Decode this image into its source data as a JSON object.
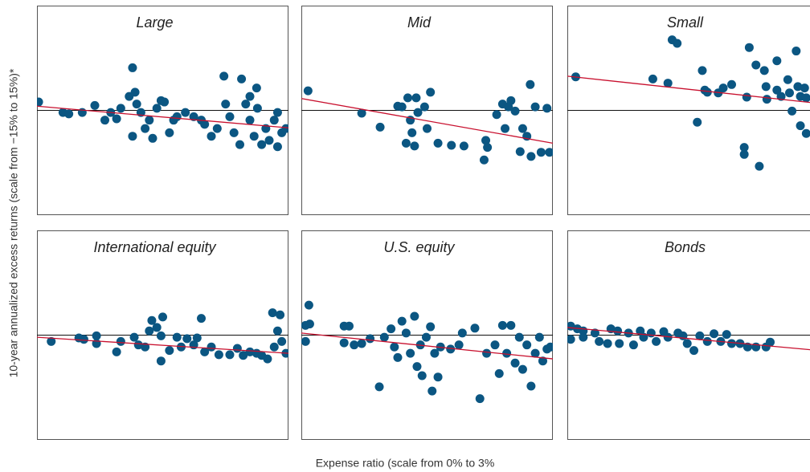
{
  "y_label": "10-year annualized excess returns (scale from −15% to 15%)*",
  "x_label": "Expense ratio (scale from 0% to 3%",
  "chart_data": [
    {
      "type": "scatter",
      "title": "Large",
      "color": "#0b5682",
      "trend_color": "#c8102e",
      "xlim": [
        0,
        3
      ],
      "ylim": [
        -15,
        15
      ],
      "hline": 0,
      "x": [
        0.02,
        0.31,
        0.38,
        0.54,
        0.69,
        0.81,
        0.88,
        0.95,
        1.0,
        1.1,
        1.14,
        1.17,
        1.19,
        1.24,
        1.14,
        1.29,
        1.34,
        1.38,
        1.43,
        1.48,
        1.52,
        1.58,
        1.63,
        1.67,
        1.77,
        1.87,
        1.96,
        2.0,
        2.08,
        2.15,
        2.23,
        2.25,
        2.3,
        2.35,
        2.44,
        2.42,
        2.49,
        2.54,
        2.59,
        2.62,
        2.63,
        2.68,
        2.73,
        2.77,
        2.83,
        2.87,
        2.92,
        2.97,
        2.87,
        2.54
      ],
      "values": [
        1.2,
        -0.3,
        -0.5,
        -0.3,
        0.7,
        -1.4,
        -0.3,
        -1.2,
        0.3,
        2.0,
        6.1,
        2.6,
        0.9,
        -0.3,
        -3.7,
        -2.6,
        -1.4,
        -4.0,
        0.3,
        1.4,
        1.2,
        -3.2,
        -1.4,
        -0.9,
        -0.3,
        -0.9,
        -1.4,
        -2.0,
        -3.7,
        -2.6,
        4.9,
        0.9,
        -0.9,
        -3.2,
        4.5,
        -4.9,
        0.9,
        -1.4,
        -3.7,
        3.2,
        0.3,
        -4.9,
        -2.6,
        -4.3,
        -1.4,
        -5.2,
        -3.2,
        -2.6,
        -0.3,
        2.0
      ],
      "trend_line": {
        "x": [
          0,
          3
        ],
        "y": [
          0.6,
          -2.5
        ]
      }
    },
    {
      "type": "scatter",
      "title": "Mid",
      "color": "#0b5682",
      "trend_color": "#c8102e",
      "xlim": [
        0,
        3
      ],
      "ylim": [
        -15,
        15
      ],
      "hline": 0,
      "x": [
        0.08,
        0.72,
        0.94,
        1.15,
        1.2,
        1.27,
        1.3,
        1.32,
        1.35,
        1.37,
        1.39,
        1.25,
        1.47,
        1.5,
        1.54,
        1.63,
        1.79,
        1.94,
        2.18,
        2.2,
        2.22,
        2.33,
        2.4,
        2.43,
        2.47,
        2.5,
        2.55,
        2.61,
        2.64,
        2.69,
        2.73,
        2.74,
        2.79,
        2.86,
        2.93,
        2.96
      ],
      "values": [
        2.8,
        -0.4,
        -2.4,
        0.6,
        0.5,
        1.8,
        -1.4,
        -3.2,
        -5.1,
        1.8,
        -0.3,
        -4.7,
        0.5,
        -2.6,
        2.6,
        -4.7,
        -5.0,
        -5.1,
        -7.1,
        -4.3,
        -5.3,
        -0.6,
        0.9,
        -2.6,
        0.5,
        1.4,
        -0.1,
        -5.9,
        -2.6,
        -3.7,
        3.7,
        -6.6,
        0.5,
        -6.0,
        0.3,
        -6.0
      ],
      "trend_line": {
        "x": [
          0,
          3
        ],
        "y": [
          1.7,
          -4.7
        ]
      }
    },
    {
      "type": "scatter",
      "title": "Small",
      "color": "#0b5682",
      "trend_color": "#c8102e",
      "xlim": [
        0,
        3
      ],
      "ylim": [
        -15,
        15
      ],
      "hline": 0,
      "x": [
        0.1,
        1.02,
        1.2,
        1.25,
        1.31,
        1.61,
        1.64,
        1.67,
        1.55,
        1.8,
        1.86,
        1.96,
        2.11,
        2.11,
        2.17,
        2.14,
        2.25,
        2.29,
        2.35,
        2.37,
        2.38,
        2.5,
        2.5,
        2.55,
        2.63,
        2.65,
        2.73,
        2.75,
        2.78,
        2.83,
        2.78,
        2.85,
        2.68,
        2.85
      ],
      "values": [
        4.8,
        4.5,
        3.9,
        10.1,
        9.6,
        5.7,
        2.9,
        2.6,
        -1.7,
        2.5,
        3.2,
        3.7,
        -5.3,
        -6.3,
        9.0,
        1.9,
        6.5,
        -8.0,
        5.7,
        3.4,
        1.6,
        7.1,
        2.9,
        2.0,
        4.4,
        2.5,
        8.5,
        3.4,
        2.0,
        3.2,
        -2.2,
        -3.3,
        -0.1,
        1.8
      ],
      "trend_line": {
        "x": [
          0,
          3
        ],
        "y": [
          4.9,
          1.0
        ]
      }
    },
    {
      "type": "scatter",
      "title": "International equity",
      "color": "#0b5682",
      "trend_color": "#c8102e",
      "xlim": [
        0,
        3
      ],
      "ylim": [
        -15,
        15
      ],
      "hline": 0,
      "x": [
        0.17,
        0.5,
        0.56,
        0.71,
        0.71,
        0.95,
        1.0,
        1.16,
        1.21,
        1.29,
        1.34,
        1.37,
        1.43,
        1.48,
        1.48,
        1.5,
        1.58,
        1.67,
        1.72,
        1.79,
        1.87,
        1.91,
        1.96,
        2.0,
        2.08,
        2.17,
        2.3,
        2.39,
        2.46,
        2.54,
        2.62,
        2.68,
        2.75,
        2.81,
        2.87,
        2.9,
        2.92,
        2.97,
        2.83
      ],
      "values": [
        -0.9,
        -0.4,
        -0.6,
        -0.1,
        -1.2,
        -2.4,
        -0.9,
        -0.3,
        -1.4,
        -1.7,
        0.6,
        2.1,
        1.1,
        -0.1,
        -3.7,
        2.6,
        -2.2,
        -0.3,
        -1.7,
        -0.5,
        -1.4,
        -0.4,
        2.4,
        -2.4,
        -1.7,
        -2.8,
        -2.8,
        -1.9,
        -2.9,
        -2.4,
        -2.6,
        -2.9,
        -3.4,
        3.2,
        0.6,
        2.9,
        -0.9,
        -2.6,
        -1.7
      ],
      "trend_line": {
        "x": [
          0,
          3
        ],
        "y": [
          -0.3,
          -2.6
        ]
      }
    },
    {
      "type": "scatter",
      "title": "U.S. equity",
      "color": "#0b5682",
      "trend_color": "#c8102e",
      "xlim": [
        0,
        3
      ],
      "ylim": [
        -15,
        15
      ],
      "hline": 0,
      "x": [
        0.09,
        0.05,
        0.1,
        0.05,
        0.51,
        0.57,
        0.51,
        0.63,
        0.72,
        0.82,
        0.93,
        0.99,
        1.07,
        1.11,
        1.15,
        1.2,
        1.25,
        1.3,
        1.35,
        1.38,
        1.42,
        1.44,
        1.49,
        1.54,
        1.56,
        1.59,
        1.63,
        1.66,
        1.78,
        1.88,
        1.92,
        2.07,
        2.13,
        2.21,
        2.31,
        2.36,
        2.4,
        2.45,
        2.5,
        2.55,
        2.6,
        2.64,
        2.69,
        2.74,
        2.79,
        2.84,
        2.88,
        2.93,
        2.97
      ],
      "values": [
        4.3,
        1.4,
        1.6,
        -0.9,
        1.3,
        1.3,
        -1.1,
        -1.4,
        -1.2,
        -0.5,
        -7.4,
        -0.3,
        0.9,
        -1.7,
        -3.2,
        2.0,
        0.3,
        -2.6,
        2.7,
        -4.5,
        -1.4,
        -5.8,
        -0.3,
        1.2,
        -8.0,
        -2.6,
        -6.0,
        -1.7,
        -2.0,
        -1.4,
        0.3,
        1.0,
        -9.1,
        -2.6,
        -1.4,
        -5.5,
        1.4,
        -2.6,
        1.4,
        -4.0,
        -0.3,
        -4.9,
        -1.4,
        -7.3,
        -2.6,
        -0.3,
        -3.7,
        -2.0,
        -1.7
      ],
      "trend_line": {
        "x": [
          0,
          3
        ],
        "y": [
          0.3,
          -3.4
        ]
      }
    },
    {
      "type": "scatter",
      "title": "Bonds",
      "color": "#0b5682",
      "trend_color": "#c8102e",
      "xlim": [
        0,
        3
      ],
      "ylim": [
        -15,
        15
      ],
      "hline": 0,
      "x": [
        0.04,
        0.04,
        0.12,
        0.19,
        0.19,
        0.33,
        0.38,
        0.48,
        0.52,
        0.6,
        0.62,
        0.73,
        0.79,
        0.87,
        0.91,
        1.0,
        1.06,
        1.15,
        1.2,
        1.32,
        1.38,
        1.43,
        1.51,
        1.58,
        1.67,
        1.75,
        1.83,
        1.9,
        1.96,
        2.06,
        2.15,
        2.25,
        2.37,
        2.42
      ],
      "values": [
        1.3,
        -0.6,
        0.9,
        0.6,
        -0.3,
        0.3,
        -0.9,
        -1.2,
        0.9,
        0.6,
        -1.2,
        0.3,
        -1.4,
        0.6,
        -0.3,
        0.3,
        -0.9,
        0.5,
        -0.3,
        0.3,
        -0.1,
        -1.2,
        -2.2,
        -0.1,
        -0.9,
        0.2,
        -0.9,
        0.1,
        -1.2,
        -1.2,
        -1.7,
        -1.7,
        -1.7,
        -1.0
      ],
      "trend_line": {
        "x": [
          0,
          3
        ],
        "y": [
          1.1,
          -2.2
        ]
      }
    }
  ]
}
